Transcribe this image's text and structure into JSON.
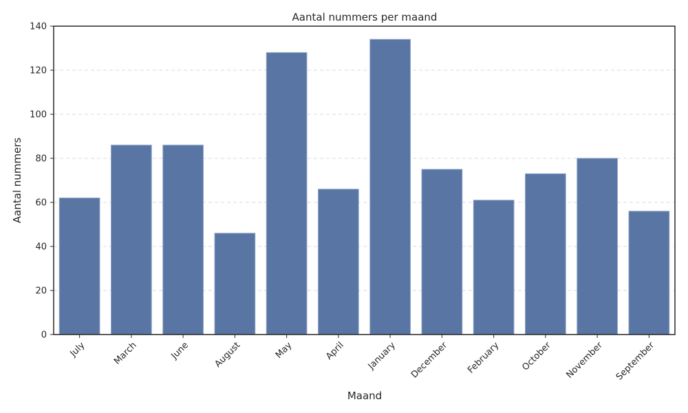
{
  "chart_data": {
    "type": "bar",
    "title": "Aantal nummers per maand",
    "xlabel": "Maand",
    "ylabel": "Aantal nummers",
    "categories": [
      "July",
      "March",
      "June",
      "August",
      "May",
      "April",
      "January",
      "December",
      "February",
      "October",
      "November",
      "September"
    ],
    "values": [
      62,
      86,
      86,
      46,
      128,
      66,
      134,
      75,
      61,
      73,
      80,
      56
    ],
    "ylim": [
      0,
      140
    ],
    "yticks": [
      0,
      20,
      40,
      60,
      80,
      100,
      120,
      140
    ],
    "grid": "y-dashed",
    "legend": "none",
    "bar_color": "#5875a4"
  }
}
